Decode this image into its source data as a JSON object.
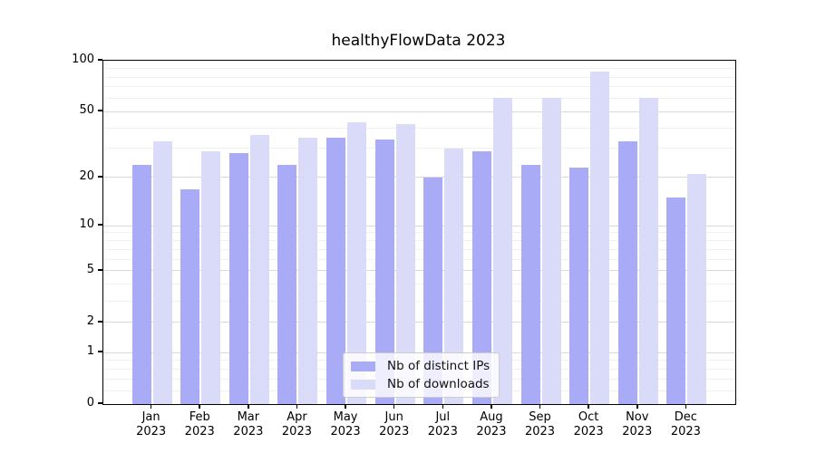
{
  "chart_data": {
    "type": "bar",
    "title": "healthyFlowData 2023",
    "categories": [
      "Jan 2023",
      "Feb 2023",
      "Mar 2023",
      "Apr 2023",
      "May 2023",
      "Jun 2023",
      "Jul 2023",
      "Aug 2023",
      "Sep 2023",
      "Oct 2023",
      "Nov 2023",
      "Dec 2023"
    ],
    "series": [
      {
        "name": "Nb of distinct IPs",
        "color": "#aaabf7",
        "values": [
          24,
          17,
          28,
          24,
          35,
          34,
          20,
          29,
          24,
          23,
          33,
          15
        ]
      },
      {
        "name": "Nb of downloads",
        "color": "#dadaf9",
        "values": [
          33,
          29,
          36,
          35,
          43,
          42,
          30,
          60,
          60,
          86,
          60,
          21
        ]
      }
    ],
    "xlabel": "",
    "ylabel": "",
    "yscale": "symlog-log1p",
    "ylim": [
      0,
      100
    ],
    "y_major_ticks": [
      0,
      1,
      2,
      5,
      10,
      20,
      50,
      100
    ],
    "y_minor_ticks": [
      0.2,
      0.4,
      0.6,
      0.8,
      3,
      4,
      6,
      7,
      8,
      9,
      30,
      40,
      60,
      70,
      80,
      90
    ],
    "grid": "horizontal",
    "legend_position": "lower center"
  }
}
